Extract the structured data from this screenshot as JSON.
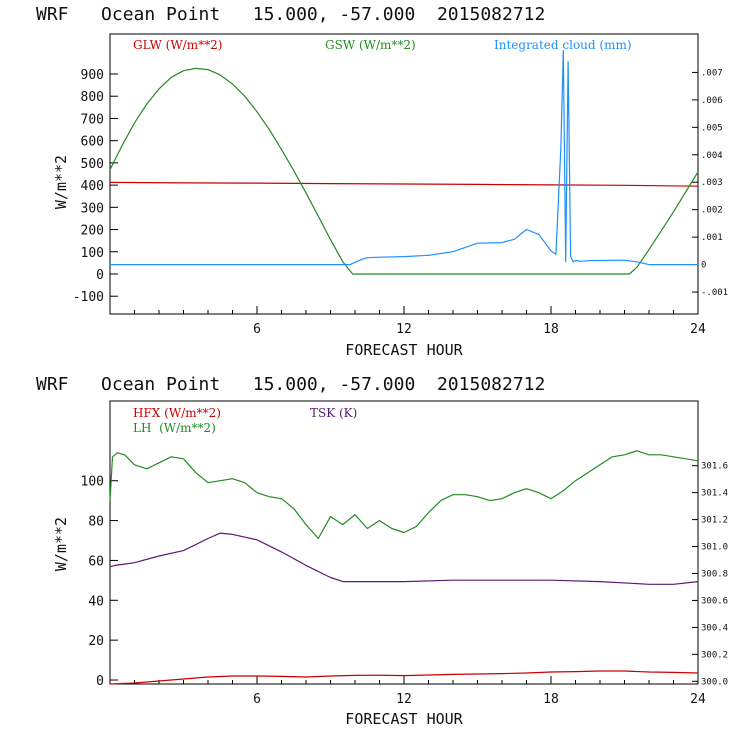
{
  "chart_data": [
    {
      "type": "line",
      "title": "WRF   Ocean Point   15.000, -57.000  2015082712",
      "xlabel": "FORECAST HOUR",
      "ylabel": "W/m**2",
      "xlim": [
        0,
        24
      ],
      "ylim": [
        -180,
        1080
      ],
      "xticks": [
        6,
        12,
        18,
        24
      ],
      "yticks": [
        -100,
        0,
        100,
        200,
        300,
        400,
        500,
        600,
        700,
        800,
        900
      ],
      "y2ticks": [
        -0.001,
        0,
        0.001,
        0.002,
        0.003,
        0.004,
        0.005,
        0.006,
        0.007
      ],
      "y2tick_labels": [
        "-.001",
        "0",
        ".001",
        ".002",
        ".003",
        ".004",
        ".005",
        ".006",
        ".007"
      ],
      "y2lim": [
        -0.0018,
        0.0084
      ],
      "legend": [
        {
          "label": "GLW (W/m**2)",
          "color": "#cc0000"
        },
        {
          "label": "GSW (W/m**2)",
          "color": "#228b22"
        },
        {
          "label": "Integrated cloud (mm)",
          "color": "#1e90ff"
        }
      ],
      "series": [
        {
          "name": "GLW (W/m**2)",
          "color": "#cc0000",
          "axis": "left",
          "x": [
            0,
            3,
            6,
            9,
            12,
            15,
            18,
            21,
            24
          ],
          "values": [
            412,
            410,
            409,
            407,
            405,
            403,
            401,
            399,
            395
          ]
        },
        {
          "name": "GSW (W/m**2)",
          "color": "#228b22",
          "axis": "left",
          "x": [
            0,
            0.5,
            1,
            1.5,
            2,
            2.5,
            3,
            3.5,
            4,
            4.5,
            5,
            5.5,
            6,
            6.5,
            7,
            7.5,
            8,
            8.5,
            9,
            9.5,
            9.9,
            10.5,
            12,
            15,
            18,
            21.2,
            21.5,
            22,
            22.5,
            23,
            23.5,
            24
          ],
          "values": [
            470,
            580,
            680,
            765,
            833,
            885,
            915,
            925,
            920,
            895,
            855,
            800,
            730,
            650,
            560,
            465,
            365,
            260,
            155,
            55,
            0,
            0,
            0,
            0,
            0,
            0,
            30,
            110,
            195,
            280,
            370,
            460
          ]
        },
        {
          "name": "Integrated cloud (mm)",
          "color": "#1e90ff",
          "axis": "right",
          "x": [
            0,
            9.8,
            10.3,
            10.5,
            11,
            12,
            13,
            14,
            15,
            16,
            16.5,
            17,
            17.5,
            18,
            18.2,
            18.4,
            18.5,
            18.6,
            18.7,
            18.8,
            18.9,
            19.0,
            19.2,
            19.5,
            20,
            21,
            21.5,
            22,
            24
          ],
          "values": [
            0,
            0,
            0.0002,
            0.00025,
            0.00027,
            0.00029,
            0.00034,
            0.00047,
            0.00078,
            0.0008,
            0.00092,
            0.00128,
            0.0011,
            0.0005,
            0.00038,
            0.0042,
            0.0078,
            0.0001,
            0.0074,
            0.0003,
            0.0001,
            0.00015,
            0.00012,
            0.00014,
            0.00015,
            0.00016,
            0.0001,
            0,
            0
          ]
        }
      ]
    },
    {
      "type": "line",
      "title": "WRF   Ocean Point   15.000, -57.000  2015082712",
      "xlabel": "FORECAST HOUR",
      "ylabel": "W/m**2",
      "xlim": [
        0,
        24
      ],
      "ylim": [
        -2,
        140
      ],
      "xticks": [
        6,
        12,
        18,
        24
      ],
      "yticks": [
        0,
        20,
        40,
        60,
        80,
        100
      ],
      "y2ticks": [
        300.0,
        300.2,
        300.4,
        300.6,
        300.8,
        301.0,
        301.2,
        301.4,
        301.6
      ],
      "y2tick_labels": [
        "300.0",
        "300.2",
        "300.4",
        "300.6",
        "300.8",
        "301.0",
        "301.2",
        "301.4",
        "301.6"
      ],
      "y2lim": [
        299.98,
        302.08
      ],
      "legend": [
        {
          "label": "HFX (W/m**2)",
          "color": "#cc0000"
        },
        {
          "label": "LH  (W/m**2)",
          "color": "#228b22"
        },
        {
          "label": "TSK (K)",
          "color": "#5a1a6e"
        }
      ],
      "series": [
        {
          "name": "HFX (W/m**2)",
          "color": "#cc0000",
          "axis": "left",
          "x": [
            0,
            1,
            2,
            3,
            4,
            5,
            6,
            7,
            8,
            9,
            10,
            11,
            12,
            13,
            14,
            15,
            16,
            17,
            18,
            19,
            20,
            21,
            22,
            23,
            24
          ],
          "values": [
            -2,
            -1.5,
            -0.5,
            0.5,
            1.5,
            2,
            2,
            1.8,
            1.5,
            2,
            2.3,
            2.4,
            2.2,
            2.5,
            2.8,
            3,
            3.2,
            3.5,
            4,
            4.2,
            4.5,
            4.5,
            4,
            3.8,
            3.5
          ]
        },
        {
          "name": "LH  (W/m**2)",
          "color": "#228b22",
          "axis": "left",
          "x": [
            0,
            0.1,
            0.3,
            0.6,
            1,
            1.5,
            2,
            2.5,
            3,
            3.5,
            4,
            4.5,
            5,
            5.5,
            6,
            6.5,
            7,
            7.5,
            8,
            8.5,
            9,
            9.5,
            10,
            10.5,
            11,
            11.5,
            12,
            12.5,
            13,
            13.5,
            14,
            14.5,
            15,
            15.5,
            16,
            16.5,
            17,
            17.5,
            18,
            18.5,
            19,
            19.5,
            20,
            20.5,
            21,
            21.5,
            22,
            22.5,
            23,
            23.5,
            24
          ],
          "values": [
            90,
            112,
            114,
            113,
            108,
            106,
            109,
            112,
            111,
            104,
            99,
            100,
            101,
            99,
            94,
            92,
            91,
            86,
            78,
            71,
            82,
            78,
            83,
            76,
            80,
            76,
            74,
            77,
            84,
            90,
            93,
            93,
            92,
            90,
            91,
            94,
            96,
            94,
            91,
            95,
            100,
            104,
            108,
            112,
            113,
            115,
            113,
            113,
            112,
            111,
            110
          ]
        },
        {
          "name": "TSK (K)",
          "color": "#5a1a6e",
          "axis": "right",
          "x": [
            0,
            0.2,
            1,
            2,
            3,
            4,
            4.5,
            5,
            6,
            7,
            8,
            9,
            9.5,
            10,
            12,
            14,
            16,
            18,
            20,
            22,
            23,
            24
          ],
          "values": [
            300.85,
            300.86,
            300.88,
            300.93,
            300.97,
            301.06,
            301.1,
            301.09,
            301.05,
            300.96,
            300.86,
            300.77,
            300.74,
            300.74,
            300.74,
            300.75,
            300.75,
            300.75,
            300.74,
            300.72,
            300.72,
            300.74
          ]
        }
      ]
    }
  ]
}
